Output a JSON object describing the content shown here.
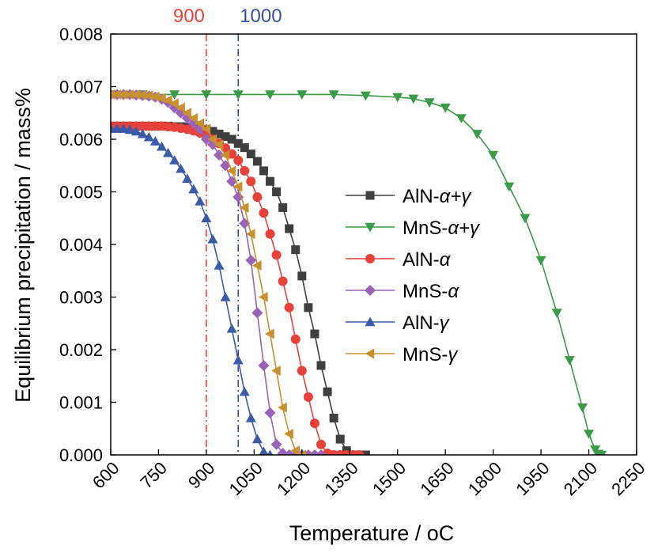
{
  "chart_data": {
    "type": "line",
    "title": "",
    "xlabel": "Temperature / ",
    "xlabel_unit": "oC",
    "ylabel": "Equilibrium precipitation / mass%",
    "xlim": [
      600,
      2250
    ],
    "ylim": [
      0,
      0.008
    ],
    "x_ticks": [
      "600",
      "750",
      "900",
      "1050",
      "1200",
      "1350",
      "1500",
      "1650",
      "1800",
      "1950",
      "2100",
      "2250"
    ],
    "y_ticks": [
      "0.000",
      "0.001",
      "0.002",
      "0.003",
      "0.004",
      "0.005",
      "0.006",
      "0.007",
      "0.008"
    ],
    "grid": false,
    "legend_position": "right-center",
    "reference_lines": [
      {
        "x": 900,
        "label": "900",
        "color": "#e8443a"
      },
      {
        "x": 1000,
        "label": "1000",
        "color": "#3a4fa0"
      }
    ],
    "series": [
      {
        "name": "AlN-",
        "name_suffix": "α+γ",
        "marker": "square",
        "color": "#3f3f3f",
        "x": [
          600,
          620,
          640,
          660,
          680,
          700,
          720,
          740,
          760,
          780,
          800,
          820,
          840,
          860,
          880,
          900,
          920,
          940,
          960,
          980,
          1000,
          1020,
          1040,
          1060,
          1080,
          1100,
          1120,
          1140,
          1160,
          1180,
          1200,
          1220,
          1240,
          1260,
          1280,
          1300,
          1320,
          1340,
          1360,
          1380,
          1400
        ],
        "y": [
          0.00625,
          0.00625,
          0.00625,
          0.00625,
          0.00625,
          0.00625,
          0.00625,
          0.00625,
          0.00625,
          0.00625,
          0.00624,
          0.00624,
          0.00623,
          0.00622,
          0.0062,
          0.00618,
          0.00615,
          0.0061,
          0.00605,
          0.006,
          0.00592,
          0.00584,
          0.00572,
          0.00558,
          0.0054,
          0.0052,
          0.005,
          0.0047,
          0.0043,
          0.0039,
          0.0034,
          0.0028,
          0.0023,
          0.0017,
          0.0012,
          0.0007,
          0.0003,
          8e-05,
          0,
          0,
          0
        ]
      },
      {
        "name": "MnS-",
        "name_suffix": "α+γ",
        "marker": "triangle-down",
        "color": "#3a9a48",
        "x": [
          600,
          700,
          800,
          900,
          1000,
          1100,
          1200,
          1300,
          1400,
          1500,
          1550,
          1600,
          1650,
          1700,
          1750,
          1800,
          1850,
          1900,
          1950,
          2000,
          2040,
          2080,
          2100,
          2120,
          2130,
          2140
        ],
        "y": [
          0.00685,
          0.00685,
          0.00685,
          0.00685,
          0.00685,
          0.00685,
          0.00685,
          0.00685,
          0.00683,
          0.0068,
          0.00677,
          0.0067,
          0.0066,
          0.0064,
          0.0061,
          0.0057,
          0.0051,
          0.0045,
          0.0037,
          0.0027,
          0.0018,
          0.0009,
          0.0004,
          0.0001,
          2e-05,
          0
        ]
      },
      {
        "name": "AlN-",
        "name_suffix": "α",
        "marker": "circle",
        "color": "#e8403a",
        "x": [
          600,
          620,
          640,
          660,
          680,
          700,
          720,
          740,
          760,
          780,
          800,
          820,
          840,
          860,
          880,
          900,
          920,
          940,
          960,
          980,
          1000,
          1020,
          1040,
          1060,
          1080,
          1100,
          1120,
          1140,
          1160,
          1180,
          1200,
          1220,
          1240,
          1260,
          1280,
          1300,
          1320,
          1340,
          1360,
          1380
        ],
        "y": [
          0.00625,
          0.00625,
          0.00625,
          0.00625,
          0.00625,
          0.00625,
          0.00625,
          0.00625,
          0.00625,
          0.00624,
          0.00623,
          0.00621,
          0.00619,
          0.00616,
          0.00612,
          0.00607,
          0.006,
          0.00592,
          0.00583,
          0.00572,
          0.0056,
          0.0054,
          0.0052,
          0.0049,
          0.0046,
          0.0042,
          0.0038,
          0.0033,
          0.0028,
          0.0022,
          0.0016,
          0.0011,
          0.0006,
          0.0002,
          3e-05,
          0,
          0,
          0,
          0,
          0
        ]
      },
      {
        "name": "MnS-",
        "name_suffix": "α",
        "marker": "diamond",
        "color": "#9b63b8",
        "x": [
          600,
          620,
          640,
          660,
          680,
          700,
          720,
          740,
          760,
          780,
          800,
          820,
          840,
          860,
          880,
          900,
          920,
          940,
          960,
          980,
          1000,
          1020,
          1040,
          1060,
          1080,
          1100,
          1120,
          1140,
          1160,
          1180,
          1200,
          1220,
          1240,
          1260
        ],
        "y": [
          0.00685,
          0.00685,
          0.00685,
          0.00685,
          0.00684,
          0.00683,
          0.00682,
          0.0068,
          0.00676,
          0.0067,
          0.0066,
          0.0065,
          0.0064,
          0.0063,
          0.0062,
          0.006,
          0.0059,
          0.0057,
          0.0055,
          0.0052,
          0.0049,
          0.0044,
          0.0037,
          0.0027,
          0.0017,
          0.0008,
          0.0002,
          3e-05,
          0,
          0,
          0,
          0,
          0,
          0
        ]
      },
      {
        "name": "AlN-",
        "name_suffix": "γ",
        "marker": "triangle-up",
        "color": "#3b5aa8",
        "x": [
          600,
          620,
          640,
          660,
          680,
          700,
          720,
          740,
          760,
          780,
          800,
          820,
          840,
          860,
          880,
          900,
          920,
          940,
          960,
          980,
          1000,
          1020,
          1040,
          1060,
          1080,
          1100
        ],
        "y": [
          0.0062,
          0.0062,
          0.0062,
          0.00618,
          0.00615,
          0.0061,
          0.00604,
          0.00596,
          0.00586,
          0.00574,
          0.0056,
          0.00544,
          0.00525,
          0.00505,
          0.00482,
          0.0045,
          0.0041,
          0.0036,
          0.003,
          0.0024,
          0.0018,
          0.0012,
          0.0007,
          0.0003,
          6e-05,
          0
        ]
      },
      {
        "name": "MnS-",
        "name_suffix": "γ",
        "marker": "triangle-left",
        "color": "#c8912e",
        "x": [
          600,
          620,
          640,
          660,
          680,
          700,
          720,
          740,
          760,
          780,
          800,
          820,
          840,
          860,
          880,
          900,
          920,
          940,
          960,
          980,
          1000,
          1020,
          1040,
          1060,
          1080,
          1100,
          1120,
          1140,
          1160,
          1180,
          1200
        ],
        "y": [
          0.00685,
          0.00685,
          0.00685,
          0.00685,
          0.00685,
          0.00684,
          0.00683,
          0.00681,
          0.00678,
          0.00674,
          0.00668,
          0.0066,
          0.0065,
          0.0064,
          0.0063,
          0.0062,
          0.006,
          0.0059,
          0.0057,
          0.0054,
          0.0051,
          0.0047,
          0.0042,
          0.0036,
          0.003,
          0.0023,
          0.0016,
          0.0009,
          0.0004,
          8e-05,
          0
        ]
      }
    ]
  }
}
